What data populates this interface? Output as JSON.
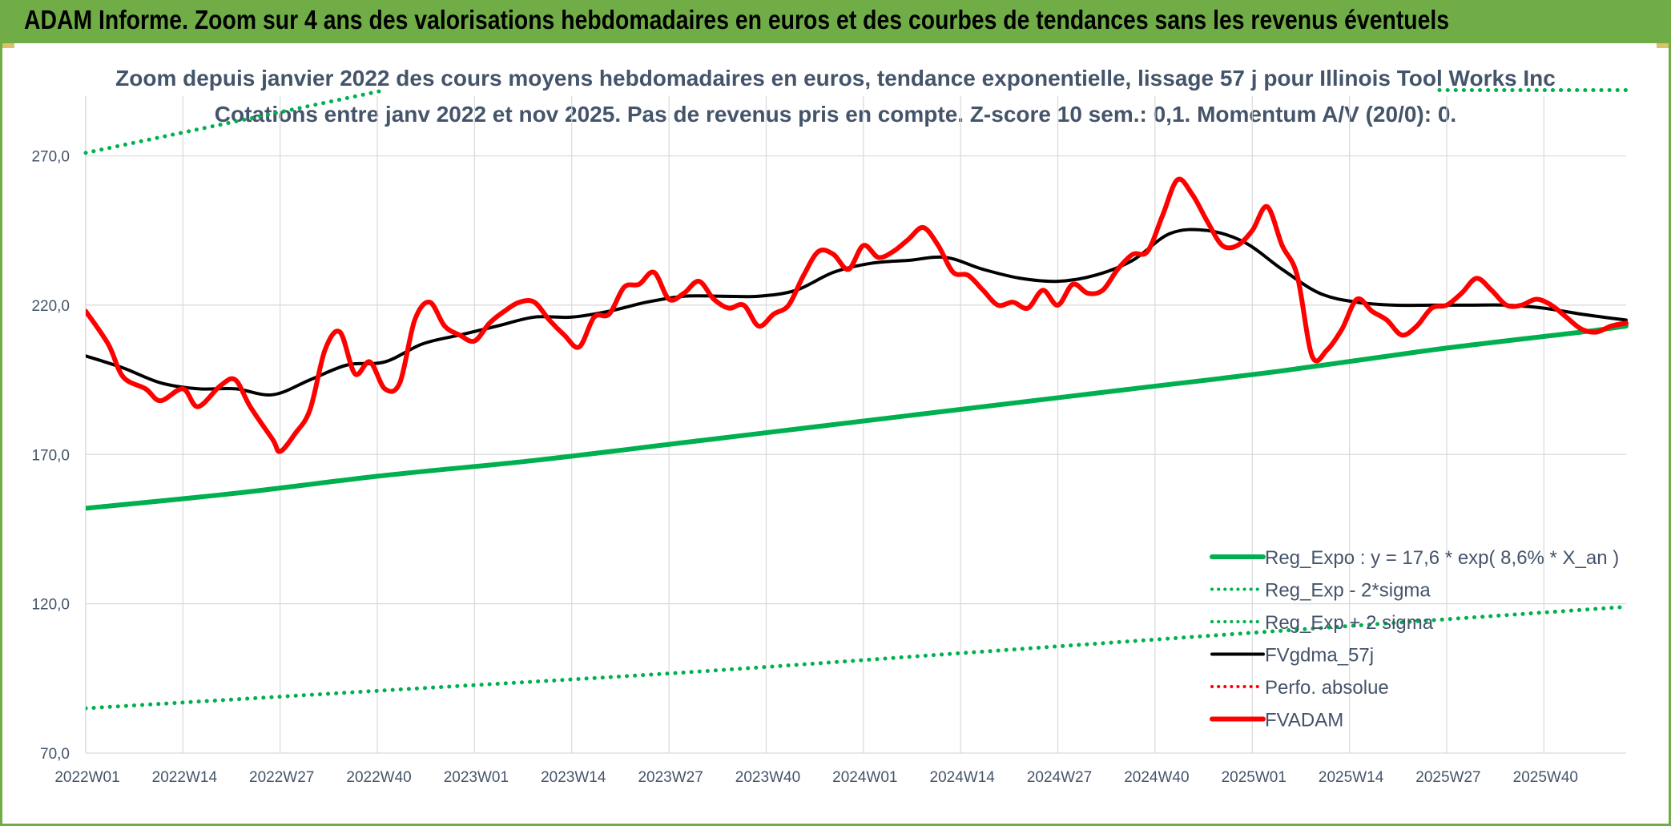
{
  "header": {
    "title": "ADAM Informe. Zoom sur 4 ans des valorisations hebdomadaires en euros et des courbes de tendances sans les revenus éventuels"
  },
  "chart_data": {
    "type": "line",
    "title": "Zoom depuis janvier 2022 des cours moyens hebdomadaires en euros, tendance exponentielle, lissage 57 j pour Illinois Tool Works Inc",
    "subtitle": "Cotations entre janv 2022 et nov 2025. Pas de revenus pris en compte. Z-score 10 sem.: 0,1. Momentum A/V (20/0): 0.",
    "xlabel": "",
    "ylabel": "",
    "ylim": [
      70,
      290
    ],
    "y_ticks": [
      "70,0",
      "120,0",
      "170,0",
      "220,0",
      "270,0"
    ],
    "y_tick_values": [
      70,
      120,
      170,
      220,
      270
    ],
    "x_ticks": [
      "2022W01",
      "2022W14",
      "2022W27",
      "2022W40",
      "2023W01",
      "2023W14",
      "2023W27",
      "2023W40",
      "2024W01",
      "2024W14",
      "2024W27",
      "2024W40",
      "2025W01",
      "2025W14",
      "2025W27",
      "2025W40"
    ],
    "x_tick_weeks": [
      0,
      13,
      26,
      39,
      52,
      65,
      78,
      91,
      104,
      117,
      130,
      143,
      156,
      169,
      182,
      195
    ],
    "week_count": 207,
    "grid": true,
    "legend_position": "bottom-right",
    "legend": [
      {
        "label": "Reg_Expo : y = 17,6 * exp( 8,6% *  X_an )",
        "style": "solid-thick",
        "color": "#00b050"
      },
      {
        "label": "Reg_Exp - 2*sigma",
        "style": "dotted",
        "color": "#00b050"
      },
      {
        "label": "Reg_Exp + 2 sigma",
        "style": "dotted",
        "color": "#00b050"
      },
      {
        "label": "FVgdma_57j",
        "style": "solid",
        "color": "#000000"
      },
      {
        "label": "Perfo. absolue",
        "style": "dotted",
        "color": "#ff0000"
      },
      {
        "label": "FVADAM",
        "style": "solid-thick",
        "color": "#ff0000"
      }
    ],
    "series": [
      {
        "name": "Reg_Expo : y = 17,6 * exp( 8,6% *  X_an )",
        "color": "#00b050",
        "style": "solid",
        "x": [
          0,
          20,
          40,
          60,
          80,
          100,
          120,
          140,
          160,
          180,
          200,
          206
        ],
        "values": [
          152,
          157,
          163,
          168,
          174,
          180,
          186,
          192,
          198,
          205,
          211,
          213
        ]
      },
      {
        "name": "Reg_Exp - 2*sigma",
        "color": "#00b050",
        "style": "dotted",
        "x": [
          0,
          40,
          80,
          120,
          160,
          206
        ],
        "values": [
          85,
          91,
          97,
          104,
          111,
          119
        ]
      },
      {
        "name": "Reg_Exp + 2 sigma",
        "color": "#00b050",
        "style": "dotted",
        "x": [
          0,
          40,
          200,
          206
        ],
        "values": [
          271,
          292,
          292,
          292
        ]
      },
      {
        "name": "FVgdma_57j",
        "color": "#000000",
        "style": "solid",
        "x": [
          0,
          5,
          10,
          15,
          20,
          25,
          30,
          35,
          40,
          45,
          50,
          55,
          60,
          65,
          70,
          75,
          80,
          85,
          90,
          95,
          100,
          105,
          110,
          115,
          120,
          125,
          130,
          135,
          140,
          145,
          150,
          155,
          160,
          165,
          170,
          175,
          180,
          185,
          190,
          195,
          200,
          206
        ],
        "values": [
          203,
          199,
          194,
          192,
          192,
          190,
          195,
          200,
          201,
          207,
          210,
          213,
          216,
          216,
          218,
          221,
          223,
          223,
          223,
          225,
          231,
          234,
          235,
          236,
          232,
          229,
          228,
          230,
          235,
          244,
          245,
          241,
          232,
          224,
          221,
          220,
          220,
          220,
          220,
          219,
          217,
          215
        ]
      },
      {
        "name": "FVADAM",
        "color": "#ff0000",
        "style": "solid",
        "x": [
          0,
          3,
          5,
          8,
          10,
          13,
          15,
          18,
          20,
          22,
          25,
          26,
          28,
          30,
          32,
          34,
          36,
          38,
          40,
          42,
          44,
          46,
          48,
          50,
          52,
          54,
          56,
          58,
          60,
          62,
          64,
          66,
          68,
          70,
          72,
          74,
          76,
          78,
          80,
          82,
          84,
          86,
          88,
          90,
          92,
          94,
          96,
          98,
          100,
          102,
          104,
          106,
          108,
          110,
          112,
          114,
          116,
          118,
          120,
          122,
          124,
          126,
          128,
          130,
          132,
          134,
          136,
          138,
          140,
          142,
          144,
          146,
          148,
          150,
          152,
          154,
          156,
          158,
          160,
          162,
          164,
          166,
          168,
          170,
          172,
          174,
          176,
          178,
          180,
          182,
          184,
          186,
          188,
          190,
          192,
          194,
          196,
          198,
          200,
          202,
          204,
          206
        ],
        "values": [
          218,
          207,
          196,
          192,
          188,
          192,
          186,
          193,
          195,
          186,
          175,
          171,
          177,
          185,
          205,
          211,
          197,
          201,
          192,
          194,
          215,
          221,
          213,
          210,
          208,
          214,
          218,
          221,
          221,
          215,
          210,
          206,
          216,
          217,
          226,
          227,
          231,
          222,
          224,
          228,
          222,
          219,
          220,
          213,
          217,
          220,
          230,
          238,
          237,
          232,
          240,
          236,
          238,
          242,
          246,
          240,
          231,
          230,
          225,
          220,
          221,
          219,
          225,
          220,
          227,
          224,
          225,
          232,
          237,
          238,
          250,
          262,
          257,
          248,
          240,
          240,
          245,
          253,
          240,
          230,
          203,
          205,
          212,
          222,
          218,
          215,
          210,
          213,
          219,
          220,
          224,
          229,
          225,
          220,
          220,
          222,
          220,
          216,
          212,
          211,
          213,
          214
        ]
      }
    ]
  }
}
